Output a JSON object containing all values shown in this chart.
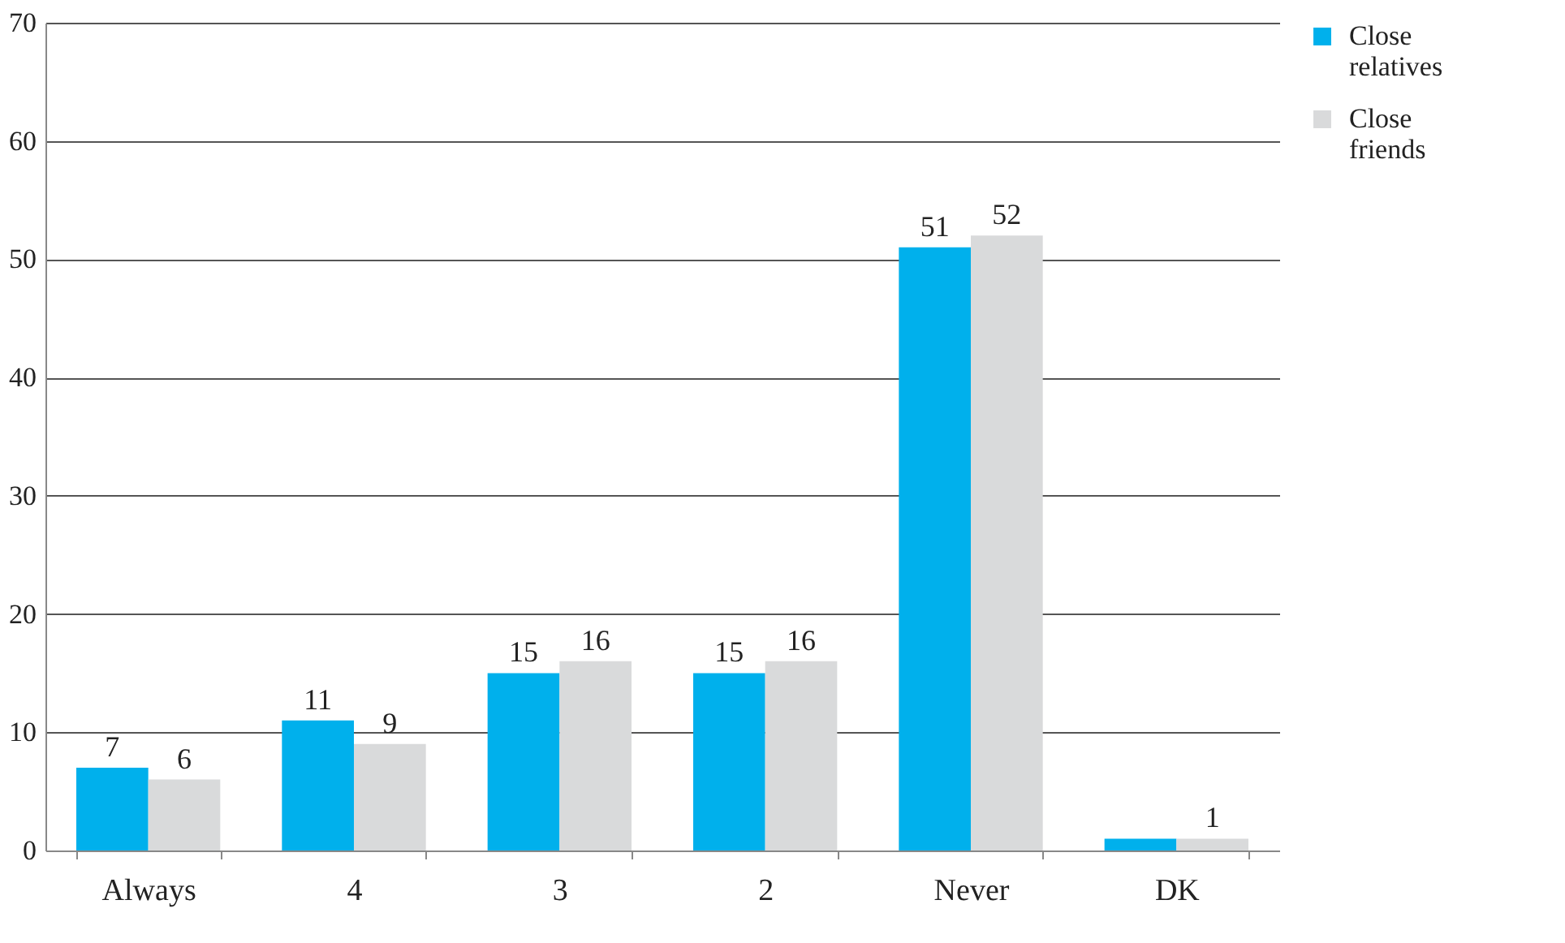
{
  "chart_data": {
    "type": "bar",
    "categories": [
      "Always",
      "4",
      "3",
      "2",
      "Never",
      "DK"
    ],
    "series": [
      {
        "name": "Close relatives",
        "color": "#00b0ec",
        "values": [
          7,
          11,
          15,
          15,
          51,
          1
        ],
        "value_labels": [
          "7",
          "11",
          "15",
          "15",
          "51",
          null
        ]
      },
      {
        "name": "Close friends",
        "color": "#d9dadb",
        "values": [
          6,
          9,
          16,
          16,
          52,
          1
        ],
        "value_labels": [
          "6",
          "9",
          "16",
          "16",
          "52",
          "1"
        ]
      }
    ],
    "ylim": [
      0,
      70
    ],
    "yticks": [
      0,
      10,
      20,
      30,
      40,
      50,
      60,
      70
    ],
    "grid": "y",
    "legend": "right"
  }
}
